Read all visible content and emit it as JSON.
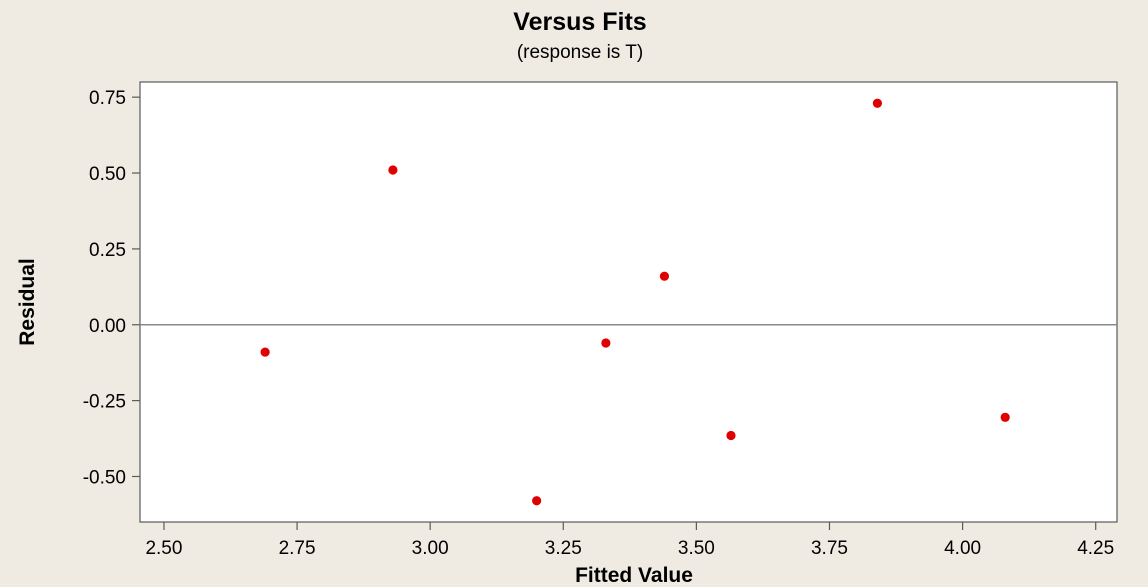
{
  "chart_data": {
    "type": "scatter",
    "title": "Versus Fits",
    "subtitle": "(response is T)",
    "xlabel": "Fitted Value",
    "ylabel": "Residual",
    "xlim": [
      2.5,
      4.25
    ],
    "ylim": [
      -0.65,
      0.8
    ],
    "x_ticks": [
      "2.50",
      "2.75",
      "3.00",
      "3.25",
      "3.50",
      "3.75",
      "4.00",
      "4.25"
    ],
    "y_ticks": [
      "0.75",
      "0.50",
      "0.25",
      "0.00",
      "-0.25",
      "-0.50"
    ],
    "reference_line_y": 0,
    "grid": false,
    "legend": "none",
    "point_color": "#e00000",
    "background_color": "#efebe3",
    "plot_background_color": "#ffffff",
    "points": [
      {
        "x": 2.69,
        "y": -0.09
      },
      {
        "x": 2.93,
        "y": 0.51
      },
      {
        "x": 3.2,
        "y": -0.58
      },
      {
        "x": 3.33,
        "y": -0.06
      },
      {
        "x": 3.44,
        "y": 0.16
      },
      {
        "x": 3.565,
        "y": -0.365
      },
      {
        "x": 3.84,
        "y": 0.73
      },
      {
        "x": 4.08,
        "y": -0.305
      }
    ]
  }
}
